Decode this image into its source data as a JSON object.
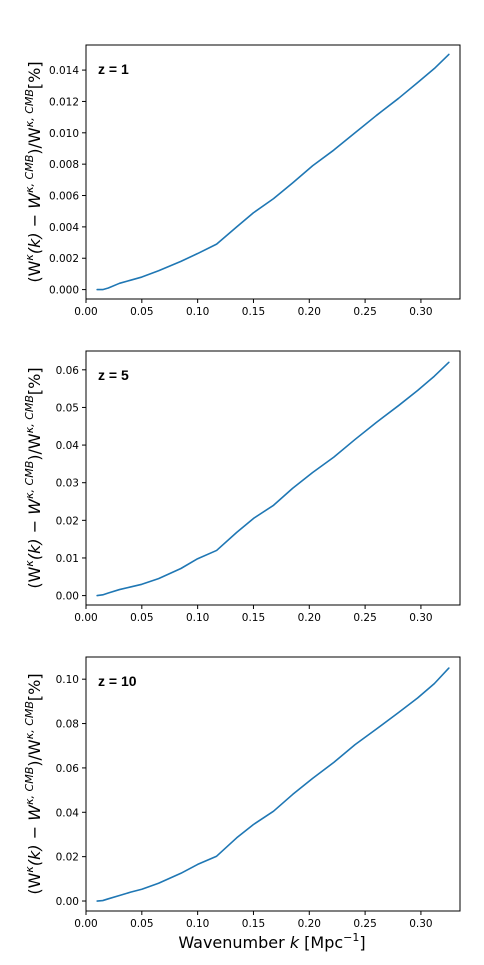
{
  "colors": {
    "line": "#1f77b4"
  },
  "x_label_parts": {
    "main": "Wavenumber ",
    "var": "k",
    "unit_open": " [Mpc",
    "exp": "−1",
    "unit_close": "]"
  },
  "y_label_parts": {
    "open": "(W",
    "sup1": "κ",
    "mid": "(k) − W",
    "sup2": "κ, CMB",
    "close": ")/W",
    "sup3": "κ, CMB",
    "end": "[%]"
  },
  "chart_data": [
    {
      "type": "line",
      "panel_label": "z = 1",
      "xlim": [
        0.0,
        0.335
      ],
      "ylim": [
        -0.0006,
        0.0156
      ],
      "xticks": [
        0.0,
        0.05,
        0.1,
        0.15,
        0.2,
        0.25,
        0.3
      ],
      "xtick_labels": [
        "0.00",
        "0.05",
        "0.10",
        "0.15",
        "0.20",
        "0.25",
        "0.30"
      ],
      "yticks": [
        0.0,
        0.002,
        0.004,
        0.006,
        0.008,
        0.01,
        0.012,
        0.014
      ],
      "ytick_labels": [
        "0.000",
        "0.002",
        "0.004",
        "0.006",
        "0.008",
        "0.010",
        "0.012",
        "0.014"
      ],
      "x": [
        0.01,
        0.015,
        0.02,
        0.03,
        0.04,
        0.05,
        0.065,
        0.085,
        0.1,
        0.117,
        0.135,
        0.15,
        0.168,
        0.185,
        0.203,
        0.222,
        0.241,
        0.26,
        0.28,
        0.297,
        0.312,
        0.325
      ],
      "y": [
        0.0,
        0.0,
        0.0001,
        0.0004,
        0.0006,
        0.0008,
        0.0012,
        0.0018,
        0.0023,
        0.0029,
        0.004,
        0.0049,
        0.0058,
        0.0068,
        0.0079,
        0.0089,
        0.01,
        0.0111,
        0.0122,
        0.0132,
        0.0141,
        0.015
      ]
    },
    {
      "type": "line",
      "panel_label": "z = 5",
      "xlim": [
        0.0,
        0.335
      ],
      "ylim": [
        -0.0025,
        0.065
      ],
      "xticks": [
        0.0,
        0.05,
        0.1,
        0.15,
        0.2,
        0.25,
        0.3
      ],
      "xtick_labels": [
        "0.00",
        "0.05",
        "0.10",
        "0.15",
        "0.20",
        "0.25",
        "0.30"
      ],
      "yticks": [
        0.0,
        0.01,
        0.02,
        0.03,
        0.04,
        0.05,
        0.06
      ],
      "ytick_labels": [
        "0.00",
        "0.01",
        "0.02",
        "0.03",
        "0.04",
        "0.05",
        "0.06"
      ],
      "x": [
        0.01,
        0.015,
        0.02,
        0.03,
        0.04,
        0.05,
        0.065,
        0.085,
        0.1,
        0.117,
        0.135,
        0.15,
        0.168,
        0.185,
        0.203,
        0.222,
        0.241,
        0.26,
        0.28,
        0.297,
        0.312,
        0.325
      ],
      "y": [
        0.0,
        0.0002,
        0.0007,
        0.0016,
        0.0023,
        0.003,
        0.0045,
        0.0072,
        0.0098,
        0.012,
        0.0168,
        0.0205,
        0.024,
        0.0285,
        0.0327,
        0.0368,
        0.0415,
        0.046,
        0.0505,
        0.0545,
        0.0583,
        0.062
      ]
    },
    {
      "type": "line",
      "panel_label": "z = 10",
      "xlim": [
        0.0,
        0.335
      ],
      "ylim": [
        -0.0045,
        0.11
      ],
      "xticks": [
        0.0,
        0.05,
        0.1,
        0.15,
        0.2,
        0.25,
        0.3
      ],
      "xtick_labels": [
        "0.00",
        "0.05",
        "0.10",
        "0.15",
        "0.20",
        "0.25",
        "0.30"
      ],
      "yticks": [
        0.0,
        0.02,
        0.04,
        0.06,
        0.08,
        0.1
      ],
      "ytick_labels": [
        "0.00",
        "0.02",
        "0.04",
        "0.06",
        "0.08",
        "0.10"
      ],
      "x": [
        0.01,
        0.015,
        0.02,
        0.03,
        0.04,
        0.05,
        0.065,
        0.085,
        0.1,
        0.117,
        0.135,
        0.15,
        0.168,
        0.185,
        0.203,
        0.222,
        0.241,
        0.26,
        0.28,
        0.297,
        0.312,
        0.325
      ],
      "y": [
        0.0,
        0.0002,
        0.001,
        0.0025,
        0.004,
        0.0053,
        0.008,
        0.0125,
        0.0165,
        0.0202,
        0.0285,
        0.0345,
        0.0405,
        0.048,
        0.0553,
        0.0625,
        0.0705,
        0.0775,
        0.085,
        0.0915,
        0.098,
        0.105
      ]
    }
  ]
}
